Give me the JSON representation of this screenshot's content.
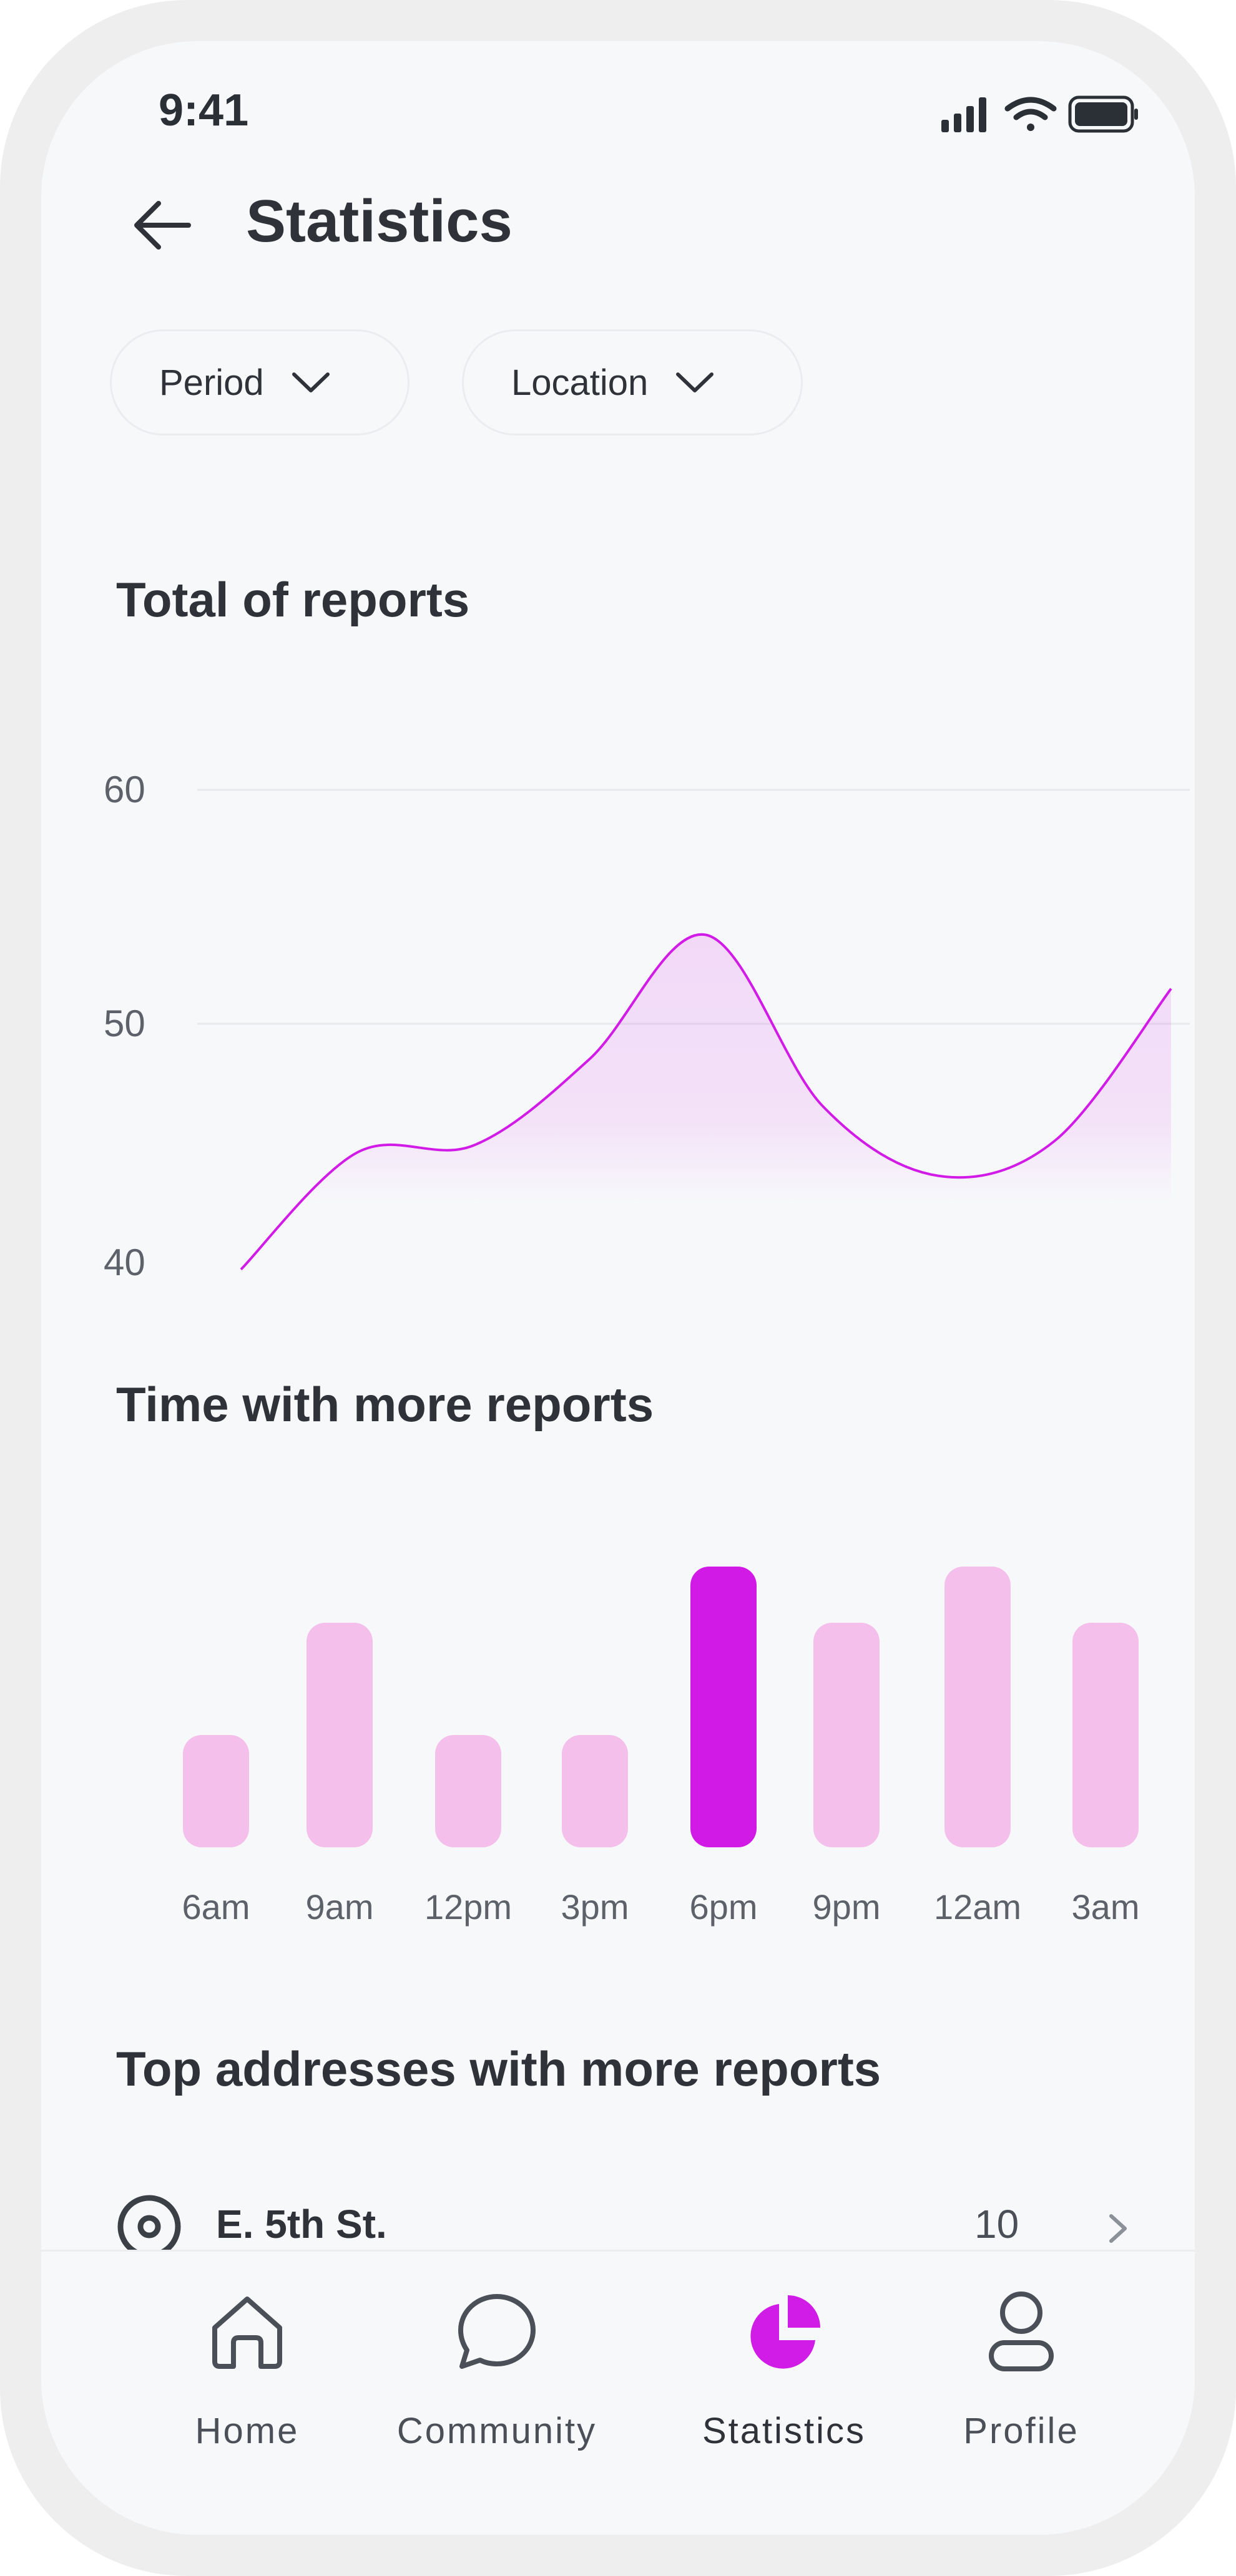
{
  "status_bar": {
    "time": "9:41"
  },
  "header": {
    "title": "Statistics"
  },
  "filters": [
    {
      "label": "Period"
    },
    {
      "label": "Location"
    }
  ],
  "sections": {
    "total": "Total of reports",
    "time": "Time with more reports",
    "addresses": "Top addresses with more reports"
  },
  "total_chart": {
    "y_ticks": [
      "60",
      "50",
      "40"
    ]
  },
  "time_chart": {
    "categories": [
      "6am",
      "9am",
      "12pm",
      "3pm",
      "6pm",
      "9pm",
      "12am",
      "3am"
    ]
  },
  "chart_data": [
    {
      "type": "area",
      "title": "Total of reports",
      "ylim": [
        40,
        60
      ],
      "yticks": [
        40,
        50,
        60
      ],
      "grid": true,
      "x": [
        0,
        1,
        2,
        3,
        4,
        5,
        6,
        7,
        8
      ],
      "values": [
        39.5,
        44.5,
        44.8,
        48.5,
        53.8,
        46.5,
        43.5,
        45.0,
        51.5
      ],
      "color": "#d11be6"
    },
    {
      "type": "bar",
      "title": "Time with more reports",
      "categories": [
        "6am",
        "9am",
        "12pm",
        "3pm",
        "6pm",
        "9pm",
        "12am",
        "3am"
      ],
      "values": [
        2,
        4,
        2,
        2,
        5,
        4,
        5,
        4
      ],
      "highlight": "6pm",
      "color": "#f5bfeb",
      "highlight_color": "#d21ae6"
    }
  ],
  "addresses": [
    {
      "name": "E. 5th St.",
      "count": "10"
    }
  ],
  "tabbar": {
    "items": [
      {
        "label": "Home",
        "icon": "home-icon"
      },
      {
        "label": "Community",
        "icon": "chat-icon"
      },
      {
        "label": "Statistics",
        "icon": "pie-chart-icon",
        "active": true
      },
      {
        "label": "Profile",
        "icon": "person-icon"
      }
    ]
  },
  "colors": {
    "accent": "#d11be6",
    "bar_light": "#f5bfeb",
    "text": "#2f3238",
    "background": "#f7f8fa"
  }
}
